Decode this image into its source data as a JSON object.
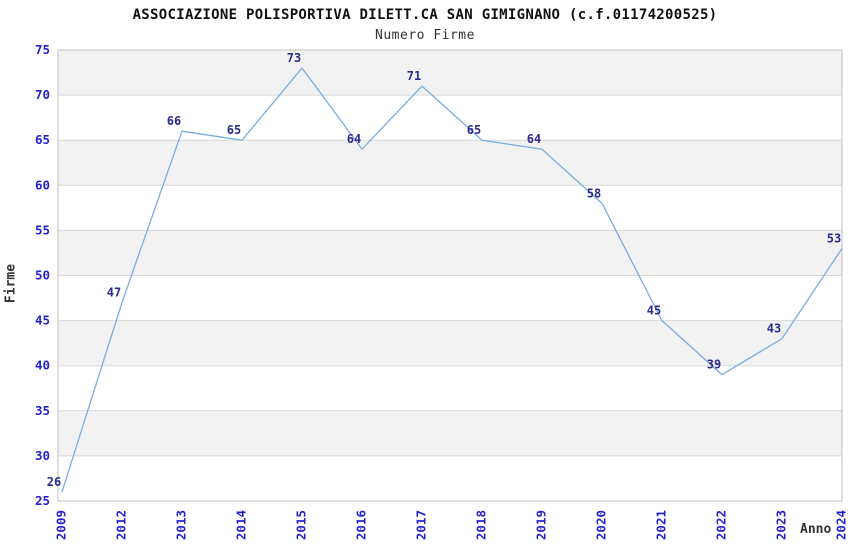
{
  "header": {
    "title": "ASSOCIAZIONE POLISPORTIVA DILETT.CA SAN GIMIGNANO (c.f.01174200525)",
    "subtitle": "Numero Firme"
  },
  "axes": {
    "y_label": "Firme",
    "x_label": "Anno",
    "y_ticks": [
      25,
      30,
      35,
      40,
      45,
      50,
      55,
      60,
      65,
      70,
      75
    ]
  },
  "chart_data": {
    "type": "line",
    "title": "ASSOCIAZIONE POLISPORTIVA DILETT.CA SAN GIMIGNANO (c.f.01174200525)",
    "subtitle": "Numero Firme",
    "xlabel": "Anno",
    "ylabel": "Firme",
    "categories": [
      "2009",
      "2012",
      "2013",
      "2014",
      "2015",
      "2016",
      "2017",
      "2018",
      "2019",
      "2020",
      "2021",
      "2022",
      "2023",
      "2024"
    ],
    "values": [
      26,
      47,
      66,
      65,
      73,
      64,
      71,
      65,
      64,
      58,
      45,
      39,
      43,
      53
    ],
    "ylim": [
      25,
      75
    ],
    "y_tick_step": 5,
    "legend": "none",
    "grid": "horizontal gridlines every 5 units with alternating background bands",
    "colors": {
      "line": "#79ade2",
      "data_label": "#2b2b8e",
      "tick_label": "#2323cc",
      "band_gray": "#f2f2f2",
      "band_white": "#ffffff",
      "gridline": "#d9d9d9",
      "plot_border": "#c2c2c2",
      "title": "#111111",
      "axis_title": "#333333"
    }
  }
}
